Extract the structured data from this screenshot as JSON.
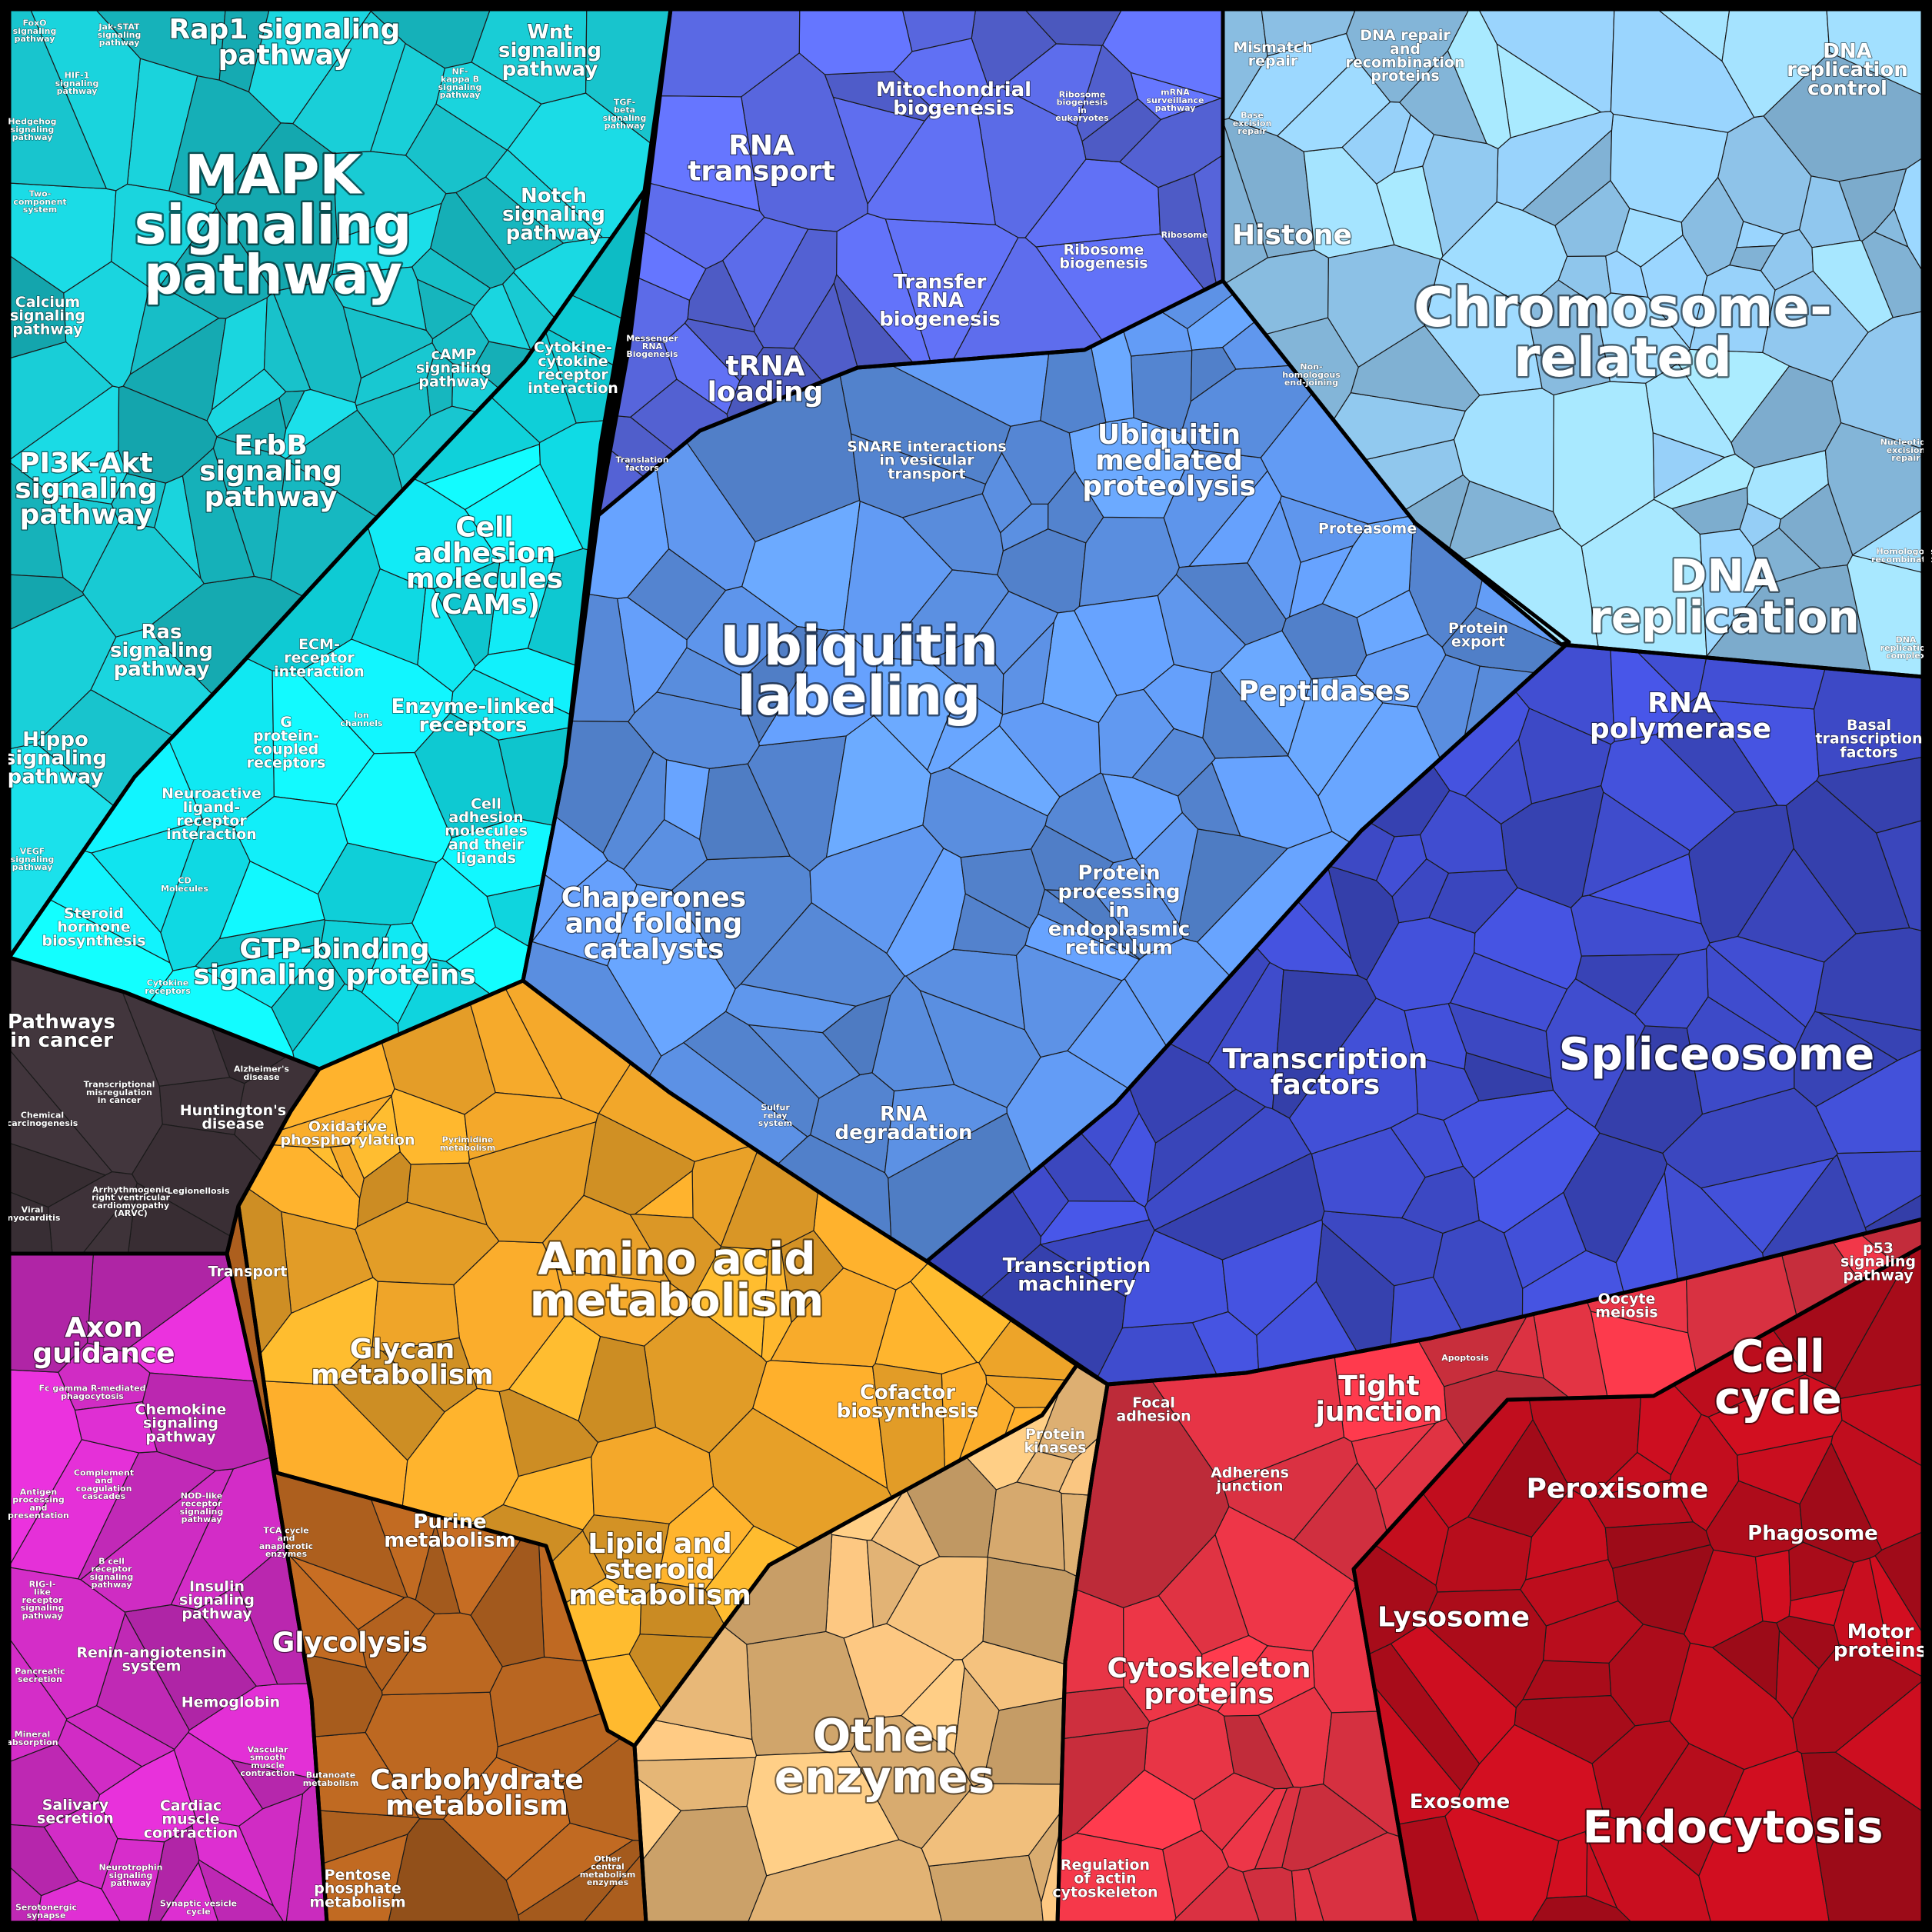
{
  "groups": [
    {
      "id": "signaling",
      "color": "#18c6cf",
      "labels": [
        {
          "text": "MAPK\nsignaling\npathway",
          "tier": "xl"
        },
        {
          "text": "Rap1 signaling\npathway",
          "tier": "m"
        },
        {
          "text": "PI3K-Akt\nsignaling\npathway",
          "tier": "m"
        },
        {
          "text": "ErbB\nsignaling\npathway",
          "tier": "m"
        },
        {
          "text": "Ras\nsignaling\npathway",
          "tier": "s"
        },
        {
          "text": "Hippo\nsignaling\npathway",
          "tier": "s"
        },
        {
          "text": "Wnt\nsignaling\npathway",
          "tier": "s"
        },
        {
          "text": "Notch\nsignaling\npathway",
          "tier": "s"
        },
        {
          "text": "Calcium\nsignaling\npathway",
          "tier": "xs"
        },
        {
          "text": "cAMP\nsignaling\npathway",
          "tier": "xs"
        },
        {
          "text": "FoxO\nsignaling\npathway",
          "tier": "xxs"
        },
        {
          "text": "Jak-STAT\nsignaling\npathway",
          "tier": "xxs"
        },
        {
          "text": "HIF-1\nsignaling\npathway",
          "tier": "xxs"
        },
        {
          "text": "Hedgehog\nsignaling\npathway",
          "tier": "xxs"
        },
        {
          "text": "Two-\ncomponent\nsystem",
          "tier": "xxs"
        },
        {
          "text": "NF-\nkappa B\nsignaling\npathway",
          "tier": "xxs"
        },
        {
          "text": "TGF-\nbeta\nsignaling\npathway",
          "tier": "xxs"
        },
        {
          "text": "VEGF\nsignaling\npathway",
          "tier": "xxs"
        }
      ]
    },
    {
      "id": "membrane",
      "color": "#10e4ee",
      "labels": [
        {
          "text": "Cell\nadhesion\nmolecules\n(CAMs)",
          "tier": "m"
        },
        {
          "text": "GTP-binding\nsignaling proteins",
          "tier": "m"
        },
        {
          "text": "Enzyme-linked\nreceptors",
          "tier": "s"
        },
        {
          "text": "Cell\nadhesion\nmolecules\nand their\nligands",
          "tier": "xs"
        },
        {
          "text": "G\nprotein-\ncoupled\nreceptors",
          "tier": "xs"
        },
        {
          "text": "Steroid\nhormone\nbiosynthesis",
          "tier": "xs"
        },
        {
          "text": "Neuroactive\nligand-\nreceptor\ninteraction",
          "tier": "xs"
        },
        {
          "text": "ECM-\nreceptor\ninteraction",
          "tier": "xs"
        },
        {
          "text": "Cytokine-\ncytokine\nreceptor\ninteraction",
          "tier": "xs"
        },
        {
          "text": "Ion\nchannels",
          "tier": "xxs"
        },
        {
          "text": "CD\nMolecules",
          "tier": "xxs"
        },
        {
          "text": "Cytokine\nreceptors",
          "tier": "xxs"
        }
      ]
    },
    {
      "id": "disease",
      "color": "#3b3036",
      "labels": [
        {
          "text": "Pathways\nin cancer",
          "tier": "s"
        },
        {
          "text": "Huntington's\ndisease",
          "tier": "xs"
        },
        {
          "text": "Arrhythmogenic\nright ventricular\ncardiomyopathy\n(ARVC)",
          "tier": "xxs"
        },
        {
          "text": "Alzheimer's\ndisease",
          "tier": "xxs"
        },
        {
          "text": "Transcriptional\nmisregulation\nin cancer",
          "tier": "xxs"
        },
        {
          "text": "Chemical\ncarcinogenesis",
          "tier": "xxs"
        },
        {
          "text": "Viral\nmyocarditis",
          "tier": "xxs"
        },
        {
          "text": "Legionellosis",
          "tier": "xxs"
        }
      ]
    },
    {
      "id": "immune",
      "color": "#d52dc9",
      "labels": [
        {
          "text": "Axon\nguidance",
          "tier": "m"
        },
        {
          "text": "Chemokine\nsignaling\npathway",
          "tier": "xs"
        },
        {
          "text": "Insulin\nsignaling\npathway",
          "tier": "xs"
        },
        {
          "text": "Salivary\nsecretion",
          "tier": "xs"
        },
        {
          "text": "Cardiac\nmuscle\ncontraction",
          "tier": "xs"
        },
        {
          "text": "Hemoglobin",
          "tier": "xs"
        },
        {
          "text": "Renin-angiotensin\nsystem",
          "tier": "xs"
        },
        {
          "text": "Pancreatic\nsecretion",
          "tier": "xxs"
        },
        {
          "text": "Mineral\nabsorption",
          "tier": "xxs"
        },
        {
          "text": "Serotonergic\nsynapse",
          "tier": "xxs"
        },
        {
          "text": "Fc gamma R-mediated\nphagocytosis",
          "tier": "xxs"
        },
        {
          "text": "Antigen\nprocessing\nand\npresentation",
          "tier": "xxs"
        },
        {
          "text": "Complement\nand\ncoagulation\ncascades",
          "tier": "xxs"
        },
        {
          "text": "NOD-like\nreceptor\nsignaling\npathway",
          "tier": "xxs"
        },
        {
          "text": "B cell\nreceptor\nsignaling\npathway",
          "tier": "xxs"
        },
        {
          "text": "RIG-I-\nlike\nreceptor\nsignaling\npathway",
          "tier": "xxs"
        },
        {
          "text": "Vascular\nsmooth\nmuscle\ncontraction",
          "tier": "xxs"
        },
        {
          "text": "Neurotrophin\nsignaling\npathway",
          "tier": "xxs"
        },
        {
          "text": "Synaptic vesicle\ncycle",
          "tier": "xxs"
        }
      ]
    },
    {
      "id": "rna",
      "color": "#5b6ae6",
      "labels": [
        {
          "text": "RNA\ntransport",
          "tier": "m"
        },
        {
          "text": "tRNA\nloading",
          "tier": "m"
        },
        {
          "text": "Transfer\nRNA\nbiogenesis",
          "tier": "s"
        },
        {
          "text": "Mitochondrial\nbiogenesis",
          "tier": "s"
        },
        {
          "text": "Ribosome\nbiogenesis",
          "tier": "xs"
        },
        {
          "text": "Ribosome\nbiogenesis\nin\neukaryotes",
          "tier": "xxs"
        },
        {
          "text": "mRNA\nsurveillance\npathway",
          "tier": "xxs"
        },
        {
          "text": "Ribosome",
          "tier": "xxs"
        },
        {
          "text": "Messenger\nRNA\nBiogenesis",
          "tier": "xxs"
        },
        {
          "text": "Translation\nfactors",
          "tier": "xxs"
        }
      ]
    },
    {
      "id": "protein",
      "color": "#5f96ec",
      "labels": [
        {
          "text": "Ubiquitin\nlabeling",
          "tier": "xl"
        },
        {
          "text": "Ubiquitin\nmediated\nproteolysis",
          "tier": "m"
        },
        {
          "text": "Chaperones\nand folding\ncatalysts",
          "tier": "m"
        },
        {
          "text": "Peptidases",
          "tier": "m"
        },
        {
          "text": "Protein\nprocessing\nin\nendoplasmic\nreticulum",
          "tier": "s"
        },
        {
          "text": "RNA\ndegradation",
          "tier": "s"
        },
        {
          "text": "Proteasome",
          "tier": "xs"
        },
        {
          "text": "Protein\nexport",
          "tier": "xs"
        },
        {
          "text": "SNARE interactions\nin vesicular\ntransport",
          "tier": "xs"
        },
        {
          "text": "Sulfur\nrelay\nsystem",
          "tier": "xxs"
        }
      ]
    },
    {
      "id": "dna",
      "color": "#96cff7",
      "labels": [
        {
          "text": "Chromosome-\nrelated",
          "tier": "xl"
        },
        {
          "text": "DNA\nreplication",
          "tier": "l"
        },
        {
          "text": "Histone",
          "tier": "m"
        },
        {
          "text": "DNA\nreplication\ncontrol",
          "tier": "s"
        },
        {
          "text": "DNA repair\nand\nrecombination\nproteins",
          "tier": "xs"
        },
        {
          "text": "Mismatch\nrepair",
          "tier": "xs"
        },
        {
          "text": "Base\nexcision\nrepair",
          "tier": "xxs"
        },
        {
          "text": "Non-\nhomologous\nend-joining",
          "tier": "xxs"
        },
        {
          "text": "Nucleotide\nexcision\nrepair",
          "tier": "xxs"
        },
        {
          "text": "Homologous\nrecombination",
          "tier": "xxs"
        },
        {
          "text": "DNA\nreplication\ncomplex",
          "tier": "xxs"
        }
      ]
    },
    {
      "id": "transcription",
      "color": "#3f4ccd",
      "labels": [
        {
          "text": "Spliceosome",
          "tier": "l"
        },
        {
          "text": "Transcription\nfactors",
          "tier": "m"
        },
        {
          "text": "RNA\npolymerase",
          "tier": "m"
        },
        {
          "text": "Transcription\nmachinery",
          "tier": "s"
        },
        {
          "text": "Basal\ntranscription\nfactors",
          "tier": "xs"
        }
      ]
    },
    {
      "id": "metabolism",
      "color": "#f2a72a",
      "labels": [
        {
          "text": "Amino acid\nmetabolism",
          "tier": "l"
        },
        {
          "text": "Glycan\nmetabolism",
          "tier": "m"
        },
        {
          "text": "Lipid and\nsteroid\nmetabolism",
          "tier": "m"
        },
        {
          "text": "Purine\nmetabolism",
          "tier": "s"
        },
        {
          "text": "Cofactor\nbiosynthesis",
          "tier": "s"
        },
        {
          "text": "Oxidative\nphosphorylation",
          "tier": "xs"
        },
        {
          "text": "Pyrimidine\nmetabolism",
          "tier": "xxs"
        },
        {
          "text": "Transport",
          "tier": "xs"
        }
      ]
    },
    {
      "id": "carb",
      "color": "#b0611f",
      "labels": [
        {
          "text": "Carbohydrate\nmetabolism",
          "tier": "m"
        },
        {
          "text": "Glycolysis",
          "tier": "m"
        },
        {
          "text": "Pentose\nphosphate\nmetabolism",
          "tier": "xs"
        },
        {
          "text": "TCA cycle\nand\nanaplerotic\nenzymes",
          "tier": "xxs"
        },
        {
          "text": "Butanoate\nmetabolism",
          "tier": "xxs"
        },
        {
          "text": "Other\ncentral\nmetabolism\nenzymes",
          "tier": "xxs"
        }
      ]
    },
    {
      "id": "enzymes",
      "color": "#e7b777",
      "labels": [
        {
          "text": "Other\nenzymes",
          "tier": "l"
        },
        {
          "text": "Protein\nkinases",
          "tier": "xs"
        }
      ]
    },
    {
      "id": "cellular",
      "color": "#e53445",
      "labels": [
        {
          "text": "Cell\ncycle",
          "tier": "l"
        },
        {
          "text": "Tight\njunction",
          "tier": "m"
        },
        {
          "text": "Cytoskeleton\nproteins",
          "tier": "m"
        },
        {
          "text": "Focal\nadhesion",
          "tier": "xs"
        },
        {
          "text": "Adherens\njunction",
          "tier": "xs"
        },
        {
          "text": "Apoptosis",
          "tier": "xxs"
        },
        {
          "text": "Oocyte\nmeiosis",
          "tier": "xs"
        },
        {
          "text": "p53\nsignaling\npathway",
          "tier": "xs"
        },
        {
          "text": "Regulation\nof actin\ncytoskeleton",
          "tier": "xs"
        }
      ]
    },
    {
      "id": "vesicle",
      "color": "#bc0d1d",
      "labels": [
        {
          "text": "Endocytosis",
          "tier": "l"
        },
        {
          "text": "Peroxisome",
          "tier": "m"
        },
        {
          "text": "Lysosome",
          "tier": "m"
        },
        {
          "text": "Phagosome",
          "tier": "s"
        },
        {
          "text": "Exosome",
          "tier": "s"
        },
        {
          "text": "Motor\nproteins",
          "tier": "s"
        }
      ]
    }
  ]
}
